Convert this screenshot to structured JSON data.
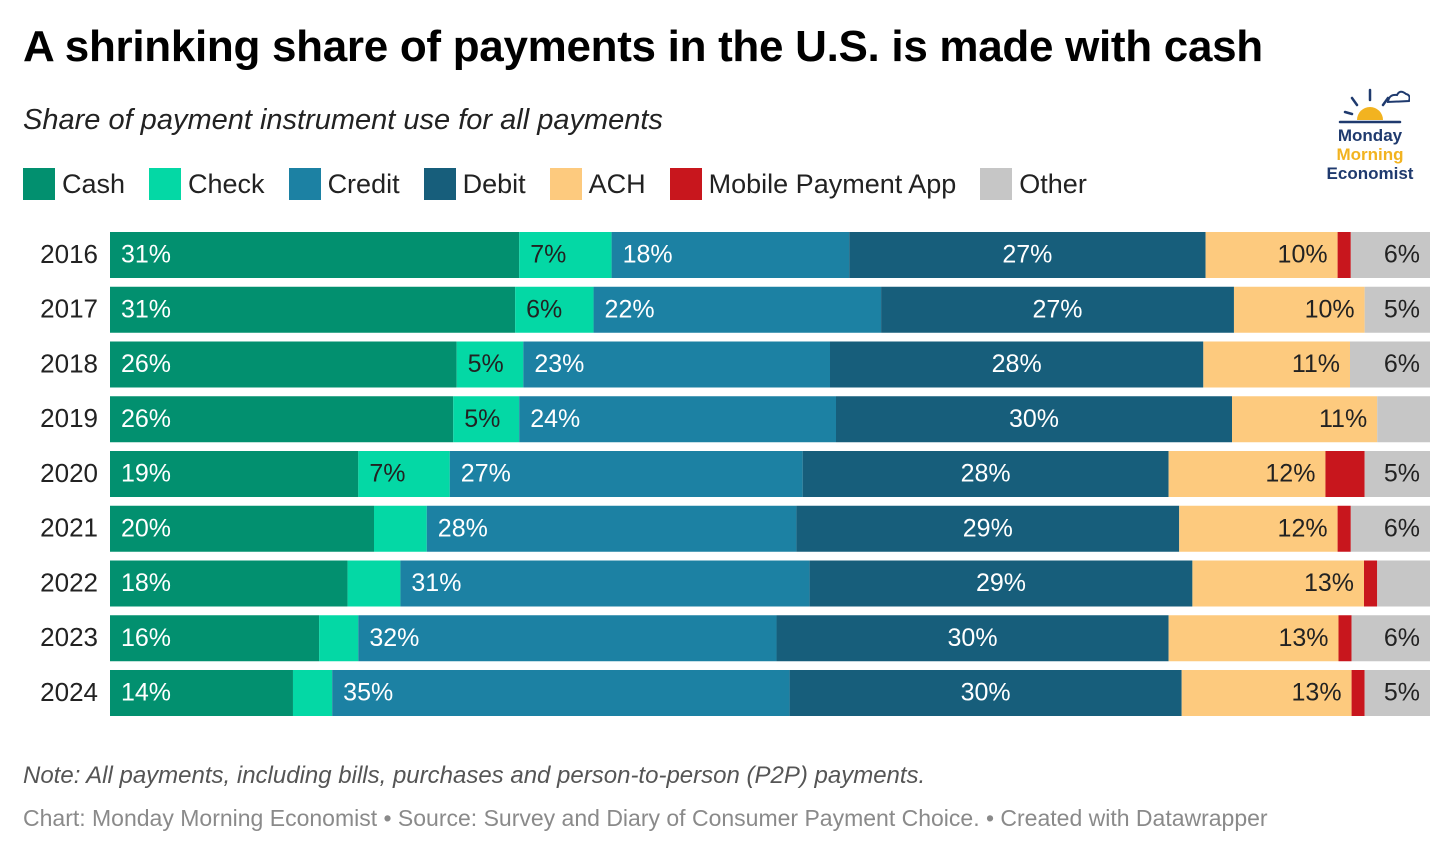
{
  "title": "A shrinking share of payments in the U.S. is made with cash",
  "subtitle": "Share of payment instrument use for all payments",
  "logo": {
    "line1": "Monday",
    "line2": "Morning",
    "line3": "Economist",
    "colors": {
      "navy": "#1f3a6e",
      "sun": "#f2b320"
    }
  },
  "note": "Note: All payments, including bills, purchases and person-to-person (P2P) payments.",
  "credit": "Chart: Monday Morning Economist • Source: Survey and Diary of Consumer Payment Choice. • Created with Datawrapper",
  "chart_data": {
    "type": "bar",
    "orientation": "horizontal",
    "stacked": true,
    "legend_position": "top-left",
    "grid": false,
    "categories": [
      "2016",
      "2017",
      "2018",
      "2019",
      "2020",
      "2021",
      "2022",
      "2023",
      "2024"
    ],
    "series": [
      {
        "name": "Cash",
        "color": "#02906f",
        "values": [
          31,
          31,
          26,
          26,
          19,
          20,
          18,
          16,
          14
        ],
        "labels": [
          "31%",
          "31%",
          "26%",
          "26%",
          "19%",
          "20%",
          "18%",
          "16%",
          "14%"
        ]
      },
      {
        "name": "Check",
        "color": "#04d8a5",
        "values": [
          7,
          6,
          5,
          5,
          7,
          4,
          4,
          3,
          3
        ],
        "labels": [
          "7%",
          "6%",
          "5%",
          "5%",
          "7%",
          "",
          "",
          "",
          ""
        ]
      },
      {
        "name": "Credit",
        "color": "#1c81a3",
        "values": [
          18,
          22,
          23,
          24,
          27,
          28,
          31,
          32,
          35
        ],
        "labels": [
          "18%",
          "22%",
          "23%",
          "24%",
          "27%",
          "28%",
          "31%",
          "32%",
          "35%"
        ]
      },
      {
        "name": "Debit",
        "color": "#175e7b",
        "values": [
          27,
          27,
          28,
          30,
          28,
          29,
          29,
          30,
          30
        ],
        "labels": [
          "27%",
          "27%",
          "28%",
          "30%",
          "28%",
          "29%",
          "29%",
          "30%",
          "30%"
        ]
      },
      {
        "name": "ACH",
        "color": "#fdca7e",
        "values": [
          10,
          10,
          11,
          11,
          12,
          12,
          13,
          13,
          13
        ],
        "labels": [
          "10%",
          "10%",
          "11%",
          "11%",
          "12%",
          "12%",
          "13%",
          "13%",
          "13%"
        ]
      },
      {
        "name": "Mobile Payment App",
        "color": "#c8161d",
        "values": [
          1,
          0,
          0,
          0,
          3,
          1,
          1,
          1,
          1
        ],
        "labels": [
          "",
          "",
          "",
          "",
          "",
          "",
          "",
          "",
          ""
        ]
      },
      {
        "name": "Other",
        "color": "#c6c6c6",
        "values": [
          6,
          5,
          6,
          4,
          5,
          6,
          4,
          6,
          5
        ],
        "labels": [
          "6%",
          "5%",
          "6%",
          "",
          "5%",
          "6%",
          "",
          "6%",
          "5%"
        ]
      }
    ]
  }
}
